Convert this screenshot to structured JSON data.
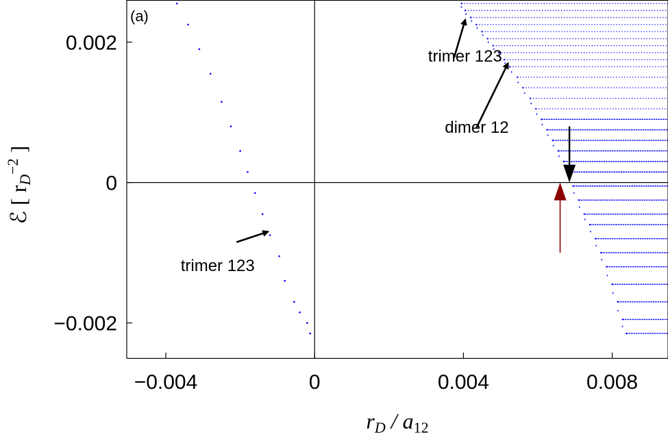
{
  "chart_data": {
    "type": "scatter",
    "panel_label": "(a)",
    "xlabel": {
      "main": "r",
      "sub": "D",
      "sep": " / a",
      "sub2": "12"
    },
    "ylabel": {
      "lead": "ℰ [ r",
      "sub": "D",
      "sup": "−2",
      "close": " ]"
    },
    "xlim": [
      -0.00505,
      0.0095
    ],
    "ylim": [
      -0.0025,
      0.0026
    ],
    "x_ticks": [
      {
        "value": -0.004,
        "label": "−0.004"
      },
      {
        "value": 0,
        "label": "0"
      },
      {
        "value": 0.004,
        "label": "0.004"
      },
      {
        "value": 0.008,
        "label": "0.008"
      }
    ],
    "y_ticks": [
      {
        "value": -0.002,
        "label": "−0.002"
      },
      {
        "value": 0,
        "label": "0"
      },
      {
        "value": 0.002,
        "label": "0.002"
      }
    ],
    "zero_lines": true,
    "colors": {
      "points": "#0000ff",
      "annotation_arrow": "#000000",
      "marker_arrow": "#8b0000"
    },
    "series": [
      {
        "points_shape": "sparse trimer branch",
        "x": [
          -0.0037,
          -0.0034,
          -0.0031,
          -0.0028,
          -0.0025,
          -0.00225,
          -0.002,
          -0.0018,
          -0.0016,
          -0.0014,
          -0.0012,
          -0.00095,
          -0.0008,
          -0.00055,
          -0.0004,
          -0.0002,
          -0.00012
        ],
        "y": [
          0.00255,
          0.00225,
          0.0019,
          0.00155,
          0.00115,
          0.0008,
          0.00045,
          0.00015,
          -0.00015,
          -0.00045,
          -0.00075,
          -0.00105,
          -0.0014,
          -0.0017,
          -0.00185,
          -0.002,
          -0.00215
        ]
      },
      {
        "points_shape": "dense band of horizontal dotted levels",
        "level_y": [
          0.00255,
          0.00245,
          0.00235,
          0.00225,
          0.00215,
          0.00205,
          0.00195,
          0.00185,
          0.00175,
          0.00165,
          0.0015,
          0.00135,
          0.0012,
          0.00105,
          0.0009,
          0.00075,
          0.0006,
          0.00045,
          0.0003,
          0.00015,
          -5e-05,
          -0.00025,
          -0.00045,
          -0.0006,
          -0.0008,
          -0.001,
          -0.0012,
          -0.00145,
          -0.0017,
          -0.00195,
          -0.00215
        ],
        "level_x_start": [
          0.00395,
          0.00405,
          0.0042,
          0.00435,
          0.0045,
          0.00465,
          0.0048,
          0.00495,
          0.0051,
          0.00525,
          0.00545,
          0.0056,
          0.0058,
          0.00595,
          0.0061,
          0.00625,
          0.0064,
          0.00655,
          0.0067,
          0.00685,
          0.00695,
          0.0071,
          0.00725,
          0.0074,
          0.00755,
          0.0077,
          0.00785,
          0.008,
          0.00815,
          0.00828,
          0.00838
        ],
        "level_x_end": 0.0095
      }
    ],
    "annotations": [
      {
        "text": "trimer 123",
        "arrow_tail": [
          0.00375,
          0.00178
        ],
        "arrow_head": [
          0.00405,
          0.00232
        ],
        "text_at": [
          0.00305,
          0.00172
        ]
      },
      {
        "text": "dimer 12",
        "arrow_tail": [
          0.00435,
          0.00078
        ],
        "arrow_head": [
          0.0052,
          0.0017
        ],
        "text_at": [
          0.0035,
          0.00071
        ]
      },
      {
        "text": "trimer 123",
        "arrow_tail": [
          -0.0021,
          -0.00085
        ],
        "arrow_head": [
          -0.00125,
          -0.0007
        ],
        "text_at": [
          -0.0036,
          -0.00126
        ]
      }
    ],
    "markers": [
      {
        "kind": "down-arrow",
        "color": "#000000",
        "x": 0.00685,
        "y_from": 0.0008,
        "y_to": 0.0
      },
      {
        "kind": "up-arrow",
        "color": "#8b0000",
        "x": 0.0066,
        "y_from": -0.001,
        "y_to": 0.0
      }
    ]
  }
}
